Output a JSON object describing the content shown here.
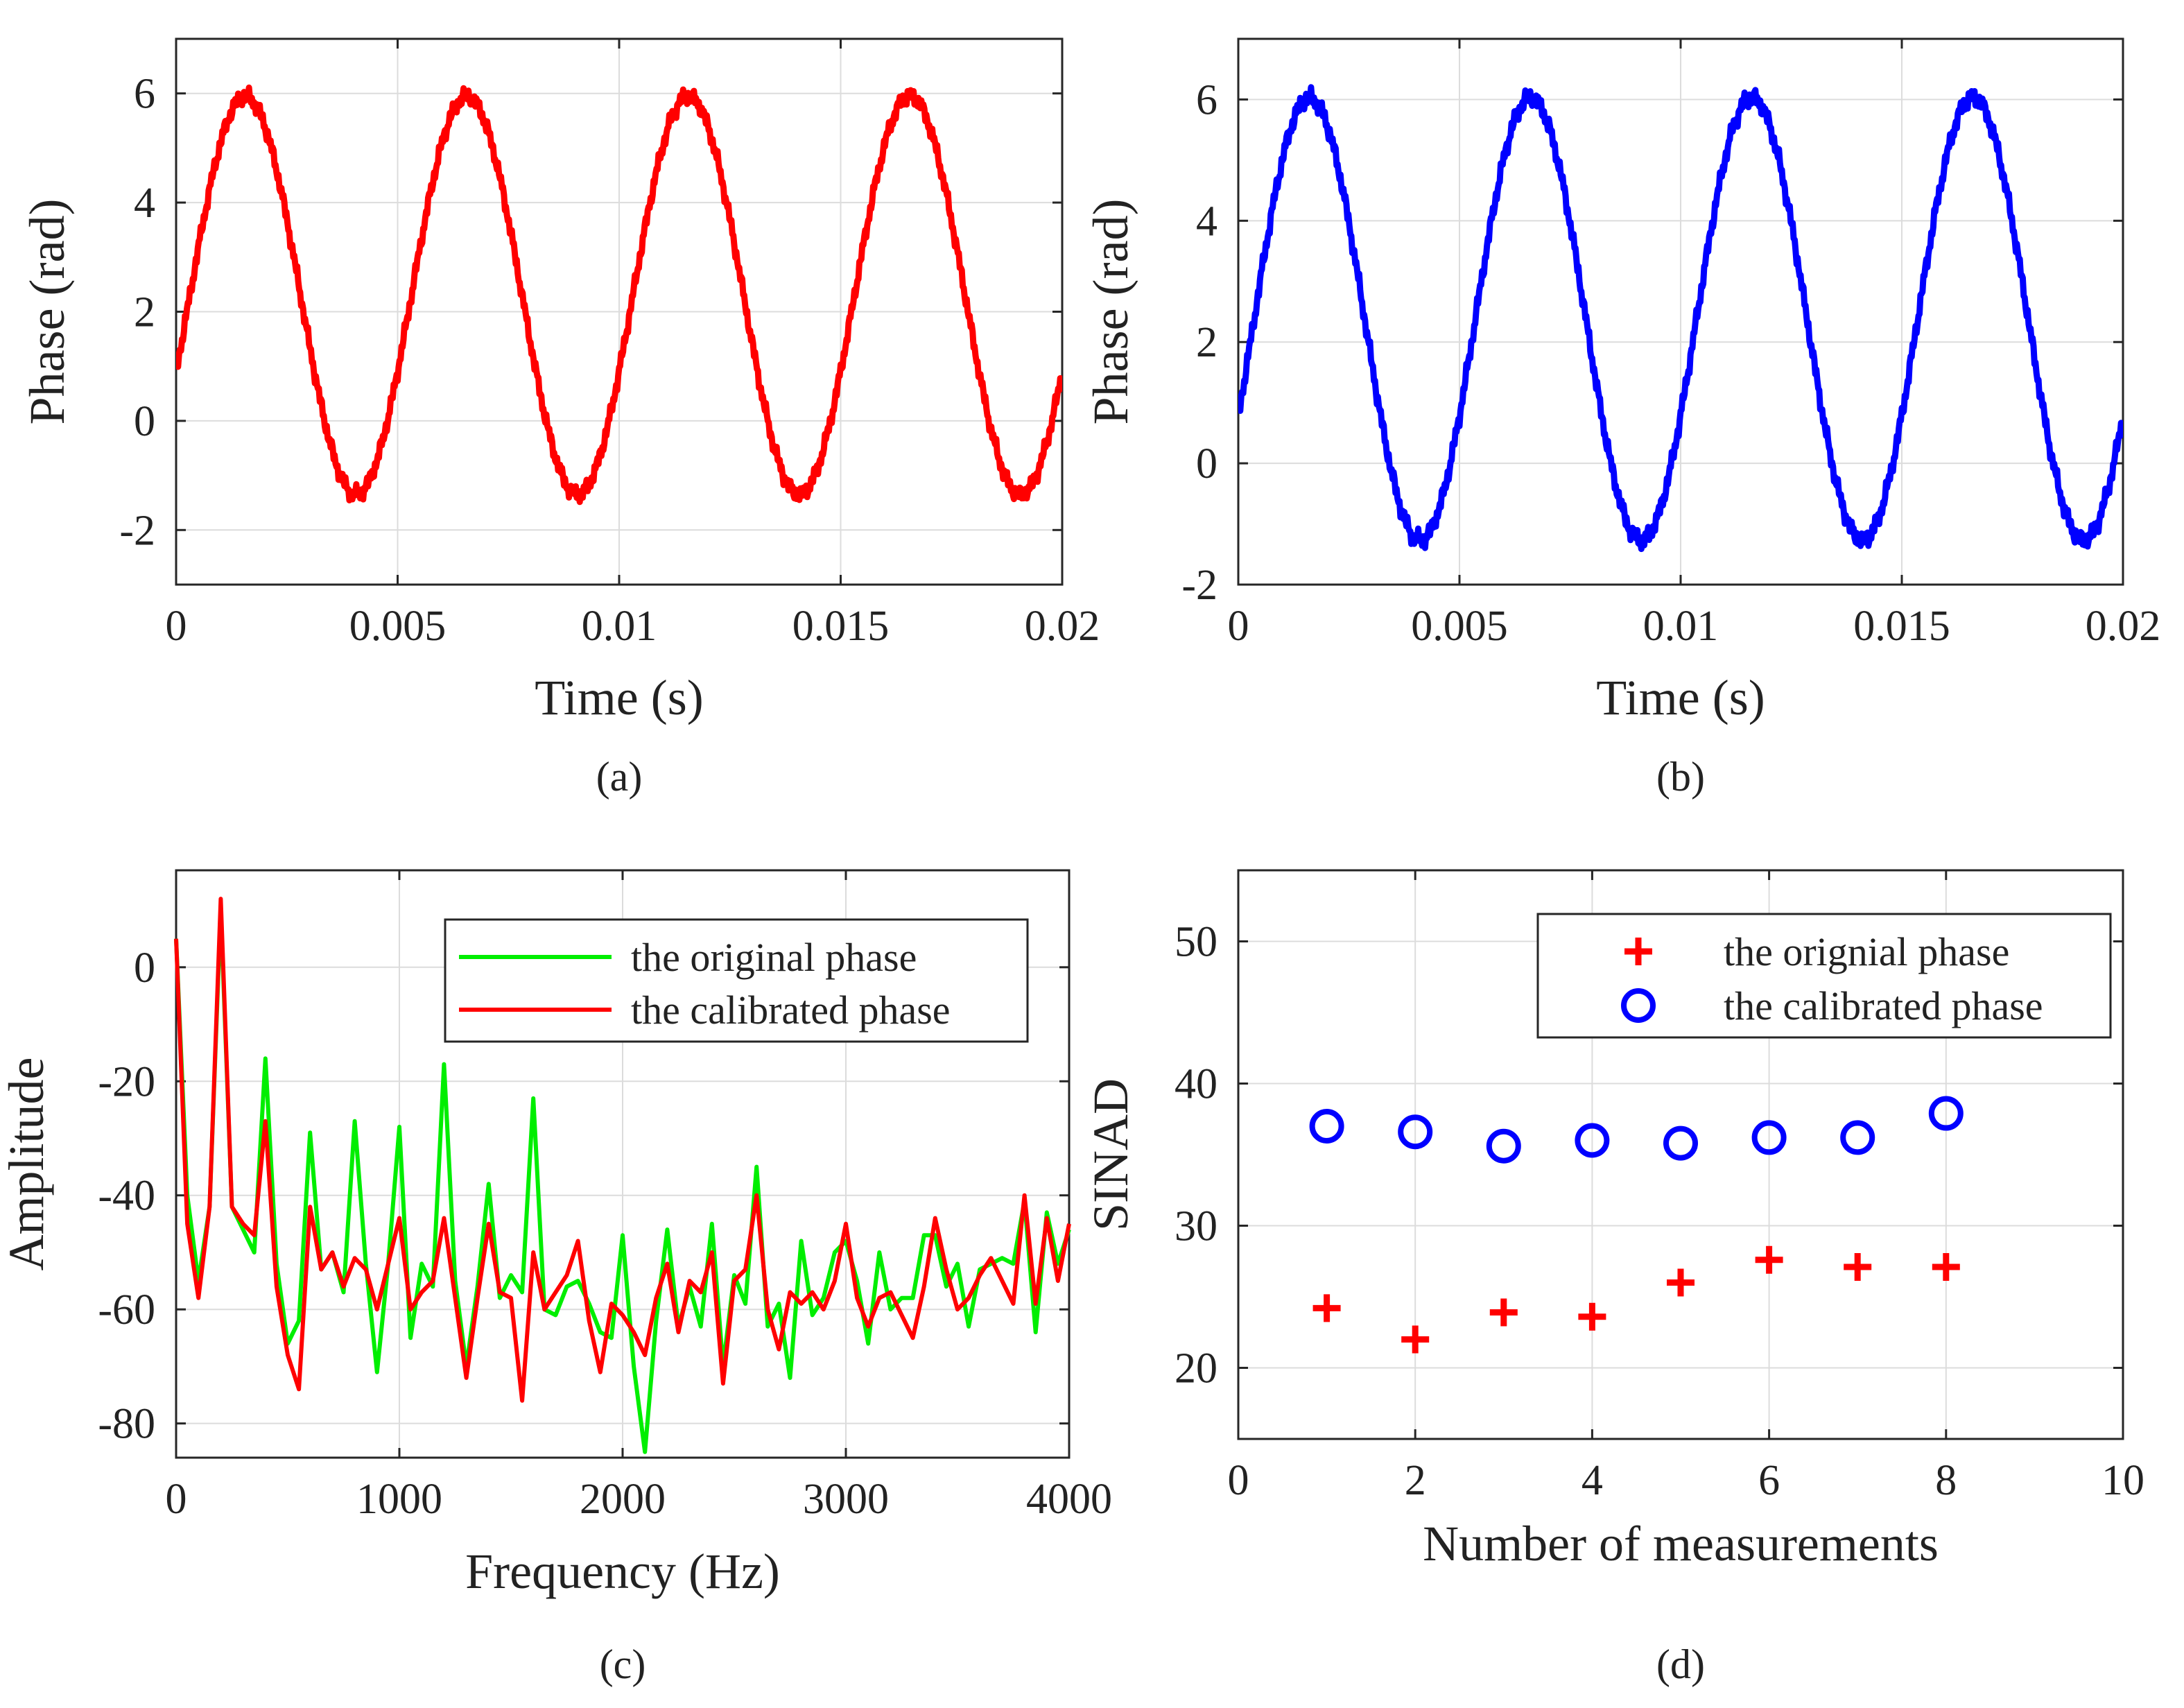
{
  "colors": {
    "red": "#ff0000",
    "blue": "#0000ff",
    "green": "#00ee00",
    "grid": "#dcdcdc",
    "axis": "#262626"
  },
  "chart_data": [
    {
      "id": "a",
      "type": "line",
      "caption": "(a)",
      "xlabel": "Time (s)",
      "ylabel": "Phase (rad)",
      "xlim": [
        0,
        0.02
      ],
      "ylim": [
        -3,
        7
      ],
      "xticks": [
        0,
        0.005,
        0.01,
        0.015,
        0.02
      ],
      "xtick_labels": [
        "0",
        "0.005",
        "0.01",
        "0.015",
        "0.02"
      ],
      "yticks": [
        -2,
        0,
        2,
        4,
        6
      ],
      "ytick_labels": [
        "-2",
        "0",
        "2",
        "4",
        "6"
      ],
      "grid": true,
      "series": [
        {
          "name": "phase",
          "color": "#ff0000",
          "model": "sine",
          "offset": 2.3,
          "amplitude": 3.65,
          "frequency_hz": 200,
          "phase0_rad": -0.39,
          "end_value": 0.8
        }
      ]
    },
    {
      "id": "b",
      "type": "line",
      "caption": "(b)",
      "xlabel": "Time (s)",
      "ylabel": "Phase (rad)",
      "xlim": [
        0,
        0.02
      ],
      "ylim": [
        -2,
        7
      ],
      "xticks": [
        0,
        0.005,
        0.01,
        0.015,
        0.02
      ],
      "xtick_labels": [
        "0",
        "0.005",
        "0.01",
        "0.015",
        "0.02"
      ],
      "yticks": [
        -2,
        0,
        2,
        4,
        6
      ],
      "ytick_labels": [
        "-2",
        "0",
        "2",
        "4",
        "6"
      ],
      "grid": true,
      "series": [
        {
          "name": "phase",
          "color": "#0000ff",
          "model": "sine",
          "offset": 2.38,
          "amplitude": 3.65,
          "frequency_hz": 200,
          "phase0_rad": -0.45,
          "end_value": 0.7
        }
      ]
    },
    {
      "id": "c",
      "type": "line",
      "caption": "(c)",
      "xlabel": "Frequency (Hz)",
      "ylabel": "Amplitude",
      "xlim": [
        0,
        4000
      ],
      "ylim": [
        -86,
        17
      ],
      "xticks": [
        0,
        1000,
        2000,
        3000,
        4000
      ],
      "xtick_labels": [
        "0",
        "1000",
        "2000",
        "3000",
        "4000"
      ],
      "yticks": [
        -80,
        -60,
        -40,
        -20,
        0
      ],
      "ytick_labels": [
        "-80",
        "-60",
        "-40",
        "-20",
        "0"
      ],
      "grid": true,
      "legend": {
        "position": "top-right",
        "entries": [
          "the original phase",
          "the calibrated phase"
        ]
      },
      "x": [
        0,
        50,
        100,
        150,
        200,
        250,
        300,
        350,
        400,
        450,
        500,
        550,
        600,
        650,
        700,
        750,
        800,
        850,
        900,
        950,
        1000,
        1050,
        1100,
        1150,
        1200,
        1250,
        1300,
        1350,
        1400,
        1450,
        1500,
        1550,
        1600,
        1650,
        1700,
        1750,
        1800,
        1850,
        1900,
        1950,
        2000,
        2050,
        2100,
        2150,
        2200,
        2250,
        2300,
        2350,
        2400,
        2450,
        2500,
        2550,
        2600,
        2650,
        2700,
        2750,
        2800,
        2850,
        2900,
        2950,
        3000,
        3050,
        3100,
        3150,
        3200,
        3250,
        3300,
        3350,
        3400,
        3450,
        3500,
        3550,
        3600,
        3650,
        3700,
        3750,
        3800,
        3850,
        3900,
        3950,
        4000
      ],
      "series": [
        {
          "name": "the original phase",
          "color": "#00ee00",
          "values": [
            5,
            -40,
            -55,
            -42,
            10,
            -42,
            -46,
            -50,
            -16,
            -52,
            -66,
            -62,
            -29,
            -53,
            -50,
            -57,
            -27,
            -52,
            -71,
            -52,
            -28,
            -65,
            -52,
            -56,
            -17,
            -55,
            -70,
            -56,
            -38,
            -58,
            -54,
            -57,
            -23,
            -60,
            -61,
            -56,
            -55,
            -59,
            -64,
            -65,
            -47,
            -70,
            -85,
            -62,
            -46,
            -63,
            -56,
            -63,
            -45,
            -70,
            -54,
            -59,
            -35,
            -63,
            -59,
            -72,
            -48,
            -61,
            -58,
            -50,
            -48,
            -55,
            -66,
            -50,
            -60,
            -58,
            -58,
            -47,
            -47,
            -56,
            -52,
            -63,
            -53,
            -52,
            -51,
            -52,
            -41,
            -64,
            -43,
            -52,
            -46
          ]
        },
        {
          "name": "the calibrated phase",
          "color": "#ff0000",
          "values": [
            5,
            -45,
            -58,
            -42,
            12,
            -42,
            -45,
            -47,
            -27,
            -56,
            -68,
            -74,
            -42,
            -53,
            -50,
            -56,
            -51,
            -53,
            -60,
            -52,
            -44,
            -60,
            -57,
            -55,
            -44,
            -58,
            -72,
            -58,
            -45,
            -57,
            -58,
            -76,
            -50,
            -60,
            -57,
            -54,
            -48,
            -62,
            -71,
            -59,
            -61,
            -64,
            -68,
            -58,
            -52,
            -64,
            -55,
            -57,
            -50,
            -73,
            -55,
            -53,
            -40,
            -60,
            -67,
            -57,
            -59,
            -57,
            -60,
            -55,
            -45,
            -58,
            -63,
            -58,
            -57,
            -61,
            -65,
            -56,
            -44,
            -53,
            -60,
            -58,
            -54,
            -51,
            -55,
            -59,
            -40,
            -59,
            -44,
            -55,
            -45
          ]
        }
      ]
    },
    {
      "id": "d",
      "type": "scatter",
      "caption": "(d)",
      "xlabel": "Number of measurements",
      "ylabel": "SINAD",
      "xlim": [
        0,
        10
      ],
      "ylim": [
        15,
        55
      ],
      "xticks": [
        0,
        2,
        4,
        6,
        8,
        10
      ],
      "xtick_labels": [
        "0",
        "2",
        "4",
        "6",
        "8",
        "10"
      ],
      "yticks": [
        20,
        30,
        40,
        50
      ],
      "ytick_labels": [
        "20",
        "30",
        "40",
        "50"
      ],
      "grid": true,
      "legend": {
        "position": "top-right",
        "entries": [
          "the orignial phase",
          "the calibrated phase"
        ]
      },
      "series": [
        {
          "name": "the orignial phase",
          "marker": "plus",
          "color": "#ff0000",
          "x": [
            1,
            2,
            3,
            4,
            5,
            6,
            7,
            8
          ],
          "y": [
            24.2,
            22.0,
            23.9,
            23.6,
            26.0,
            27.6,
            27.1,
            27.1
          ]
        },
        {
          "name": "the calibrated phase",
          "marker": "circle",
          "color": "#0000ff",
          "x": [
            1,
            2,
            3,
            4,
            5,
            6,
            7,
            8
          ],
          "y": [
            37.0,
            36.6,
            35.6,
            36.0,
            35.8,
            36.2,
            36.2,
            37.9
          ]
        }
      ]
    }
  ]
}
